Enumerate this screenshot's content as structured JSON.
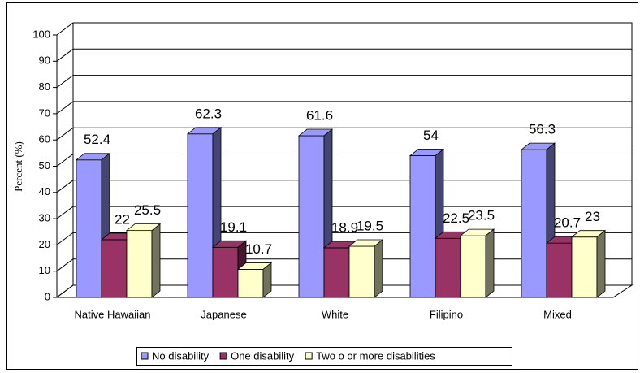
{
  "chart_data": {
    "type": "bar3d",
    "y_label": "Percent (%)",
    "categories": [
      "Native Hawaiian",
      "Japanese",
      "White",
      "Filipino",
      "Mixed"
    ],
    "series": [
      {
        "name": "No disability",
        "color": "#9999ff",
        "values": [
          52.4,
          62.3,
          61.6,
          54,
          56.3
        ]
      },
      {
        "name": "One disability",
        "color": "#993366",
        "values": [
          22,
          19.1,
          18.9,
          22.5,
          20.7
        ]
      },
      {
        "name": "Two o or more disabilities",
        "color": "#ffffcc",
        "values": [
          25.5,
          10.7,
          19.5,
          23.5,
          23
        ]
      }
    ],
    "ylim": [
      0,
      100
    ],
    "yticks": [
      0,
      10,
      20,
      30,
      40,
      50,
      60,
      70,
      80,
      90,
      100
    ],
    "grid": true,
    "legend": "bottom"
  }
}
